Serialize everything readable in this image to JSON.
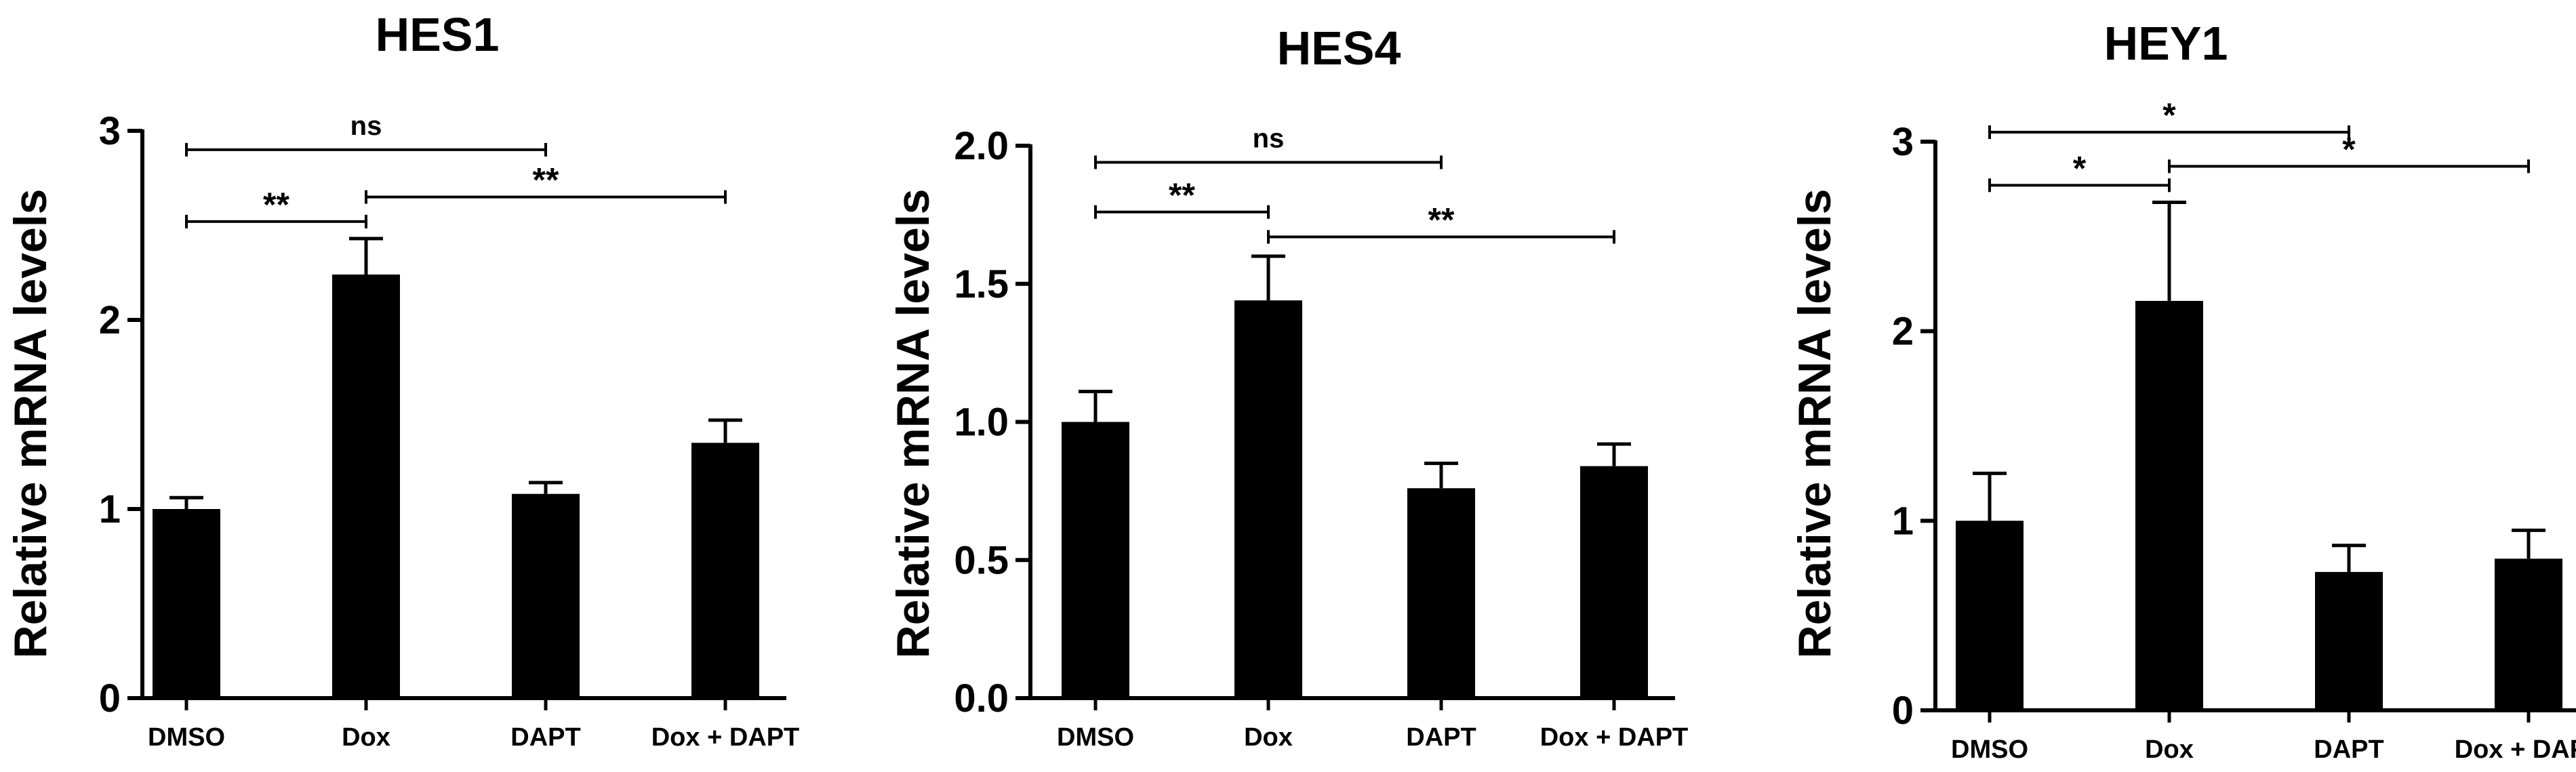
{
  "chart_data": [
    {
      "type": "bar",
      "title": "HES1",
      "ylabel": "Relative mRNA levels",
      "categories": [
        "DMSO",
        "Dox",
        "DAPT",
        "Dox + DAPT"
      ],
      "values": [
        1.0,
        2.24,
        1.08,
        1.35
      ],
      "errors": [
        0.06,
        0.19,
        0.06,
        0.12
      ],
      "ylim": [
        0,
        3
      ],
      "yticks": [
        "0",
        "1",
        "2",
        "3"
      ],
      "comparisons": [
        {
          "from": 0,
          "to": 2,
          "label": "ns",
          "y": 2.9
        },
        {
          "from": 0,
          "to": 1,
          "label": "**",
          "y": 2.52
        },
        {
          "from": 1,
          "to": 3,
          "label": "**",
          "y": 2.65
        }
      ]
    },
    {
      "type": "bar",
      "title": "HES4",
      "ylabel": "Relative mRNA levels",
      "categories": [
        "DMSO",
        "Dox",
        "DAPT",
        "Dox + DAPT"
      ],
      "values": [
        1.0,
        1.44,
        0.76,
        0.84
      ],
      "errors": [
        0.11,
        0.16,
        0.09,
        0.08
      ],
      "ylim": [
        0,
        2.0
      ],
      "yticks": [
        "0.0",
        "0.5",
        "1.0",
        "1.5",
        "2.0"
      ],
      "comparisons": [
        {
          "from": 0,
          "to": 2,
          "label": "ns",
          "y": 1.94
        },
        {
          "from": 0,
          "to": 1,
          "label": "**",
          "y": 1.76
        },
        {
          "from": 1,
          "to": 3,
          "label": "**",
          "y": 1.67
        }
      ]
    },
    {
      "type": "bar",
      "title": "HEY1",
      "ylabel": "Relative mRNA levels",
      "categories": [
        "DMSO",
        "Dox",
        "DAPT",
        "Dox + DAPT"
      ],
      "values": [
        1.0,
        2.16,
        0.73,
        0.8
      ],
      "errors": [
        0.25,
        0.52,
        0.14,
        0.15
      ],
      "ylim": [
        0,
        3
      ],
      "yticks": [
        "0",
        "1",
        "2",
        "3"
      ],
      "comparisons": [
        {
          "from": 0,
          "to": 2,
          "label": "*",
          "y": 3.05
        },
        {
          "from": 0,
          "to": 1,
          "label": "*",
          "y": 2.77
        },
        {
          "from": 1,
          "to": 3,
          "label": "*",
          "y": 2.87
        }
      ]
    }
  ]
}
